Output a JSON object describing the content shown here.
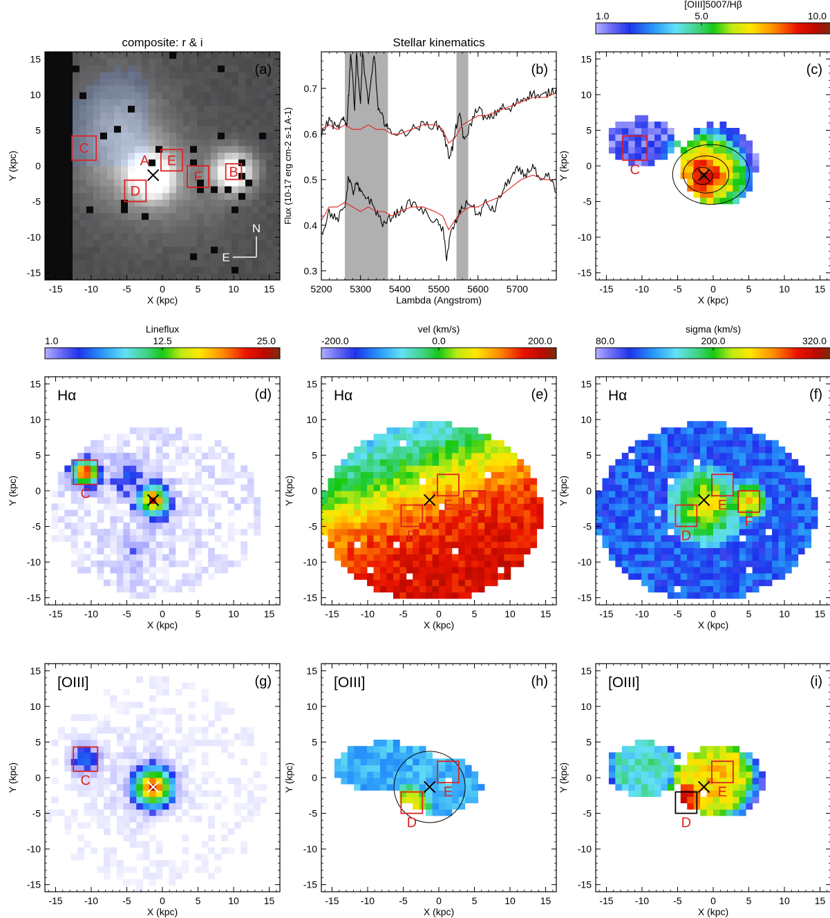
{
  "chart_data": [
    {
      "type": "heatmap",
      "panel": "a",
      "title": "composite: r & i",
      "xlabel": "X (kpc)",
      "ylabel": "Y (kpc)",
      "xlim": [
        -16.5,
        16.5
      ],
      "ylim": [
        -16,
        16
      ],
      "xticks": [
        -15,
        -10,
        -5,
        0,
        5,
        10,
        15
      ],
      "yticks": [
        -15,
        -10,
        -5,
        0,
        5,
        10,
        15
      ],
      "panel_label": "(a)",
      "background": "dark-composite",
      "blobs": [
        {
          "x": -6,
          "y": 4,
          "sx": 4.5,
          "sy": 6,
          "amp": 0.45
        },
        {
          "x": -1.5,
          "y": -1.5,
          "sx": 2.2,
          "sy": 2.2,
          "amp": 1.0
        },
        {
          "x": 10,
          "y": -0.8,
          "sx": 2.0,
          "sy": 2.0,
          "amp": 1.0
        },
        {
          "x": 2,
          "y": -3,
          "sx": 6,
          "sy": 5,
          "amp": 0.2
        }
      ],
      "regions": [
        {
          "label": "C",
          "x": -11,
          "y": 2.5,
          "size": 3.4,
          "color": "#e02020",
          "label_pos": "inside"
        },
        {
          "label": "D",
          "x": -3.8,
          "y": -3.5,
          "size": 3.0,
          "color": "#e02020",
          "label_pos": "inside"
        },
        {
          "label": "E",
          "x": 1.3,
          "y": 0.8,
          "size": 3.0,
          "color": "#e02020",
          "label_pos": "inside"
        },
        {
          "label": "F",
          "x": 5,
          "y": -1.5,
          "size": 3.0,
          "color": "#e02020",
          "label_pos": "inside"
        },
        {
          "label": "B",
          "x": 10,
          "y": -0.8,
          "size": 2.2,
          "color": "#e02020",
          "label_pos": "inside"
        }
      ],
      "point_labels": [
        {
          "label": "A",
          "x": -2.5,
          "y": 0.1,
          "color": "#e02020"
        }
      ],
      "center_cross": {
        "x": -1.3,
        "y": -1.3,
        "color": "#000000"
      },
      "compass": {
        "north": "N",
        "east": "E"
      }
    },
    {
      "type": "line",
      "panel": "b",
      "title": "Stellar kinematics",
      "xlabel": "Lambda (Angstrom)",
      "ylabel": "Flux (10-17 erg cm-2 s-1 A-1)",
      "xlim": [
        5200,
        5800
      ],
      "ylim": [
        0.28,
        0.78
      ],
      "xticks": [
        5200,
        5300,
        5400,
        5500,
        5600,
        5700
      ],
      "yticks": [
        0.3,
        0.4,
        0.5,
        0.6,
        0.7
      ],
      "panel_label": "(b)",
      "masked_regions": [
        [
          5260,
          5370
        ],
        [
          5545,
          5575
        ]
      ],
      "series": [
        {
          "color": "#000000",
          "x": [
            5200,
            5220,
            5240,
            5255,
            5265,
            5270,
            5275,
            5285,
            5290,
            5300,
            5305,
            5320,
            5335,
            5345,
            5360,
            5370,
            5400,
            5430,
            5460,
            5490,
            5510,
            5525,
            5535,
            5545,
            5555,
            5565,
            5580,
            5600,
            5620,
            5640,
            5660,
            5680,
            5700,
            5720,
            5740,
            5760,
            5780,
            5800
          ],
          "y": [
            0.6,
            0.63,
            0.61,
            0.63,
            0.62,
            0.69,
            0.78,
            0.66,
            0.78,
            0.66,
            0.78,
            0.66,
            0.78,
            0.65,
            0.63,
            0.61,
            0.6,
            0.61,
            0.62,
            0.62,
            0.61,
            0.55,
            0.57,
            0.62,
            0.64,
            0.58,
            0.62,
            0.66,
            0.63,
            0.64,
            0.66,
            0.65,
            0.67,
            0.68,
            0.69,
            0.68,
            0.69,
            0.7
          ]
        },
        {
          "color": "#e02020",
          "x": [
            5200,
            5220,
            5240,
            5260,
            5280,
            5300,
            5320,
            5340,
            5360,
            5380,
            5400,
            5430,
            5460,
            5490,
            5510,
            5525,
            5540,
            5560,
            5580,
            5600,
            5620,
            5650,
            5680,
            5710,
            5740,
            5770,
            5800
          ],
          "y": [
            0.61,
            0.62,
            0.61,
            0.62,
            0.61,
            0.61,
            0.62,
            0.61,
            0.61,
            0.6,
            0.6,
            0.61,
            0.62,
            0.62,
            0.61,
            0.58,
            0.59,
            0.62,
            0.63,
            0.64,
            0.64,
            0.65,
            0.66,
            0.67,
            0.68,
            0.68,
            0.69
          ]
        },
        {
          "color": "#000000",
          "x": [
            5200,
            5220,
            5240,
            5260,
            5270,
            5280,
            5290,
            5300,
            5320,
            5340,
            5360,
            5380,
            5400,
            5430,
            5460,
            5490,
            5510,
            5520,
            5530,
            5545,
            5560,
            5580,
            5600,
            5620,
            5640,
            5660,
            5680,
            5700,
            5720,
            5740,
            5760,
            5780,
            5800
          ],
          "y": [
            0.38,
            0.43,
            0.41,
            0.44,
            0.51,
            0.47,
            0.49,
            0.47,
            0.46,
            0.43,
            0.4,
            0.42,
            0.43,
            0.45,
            0.43,
            0.41,
            0.39,
            0.33,
            0.38,
            0.41,
            0.44,
            0.45,
            0.42,
            0.45,
            0.43,
            0.47,
            0.5,
            0.52,
            0.51,
            0.53,
            0.49,
            0.51,
            0.47
          ]
        },
        {
          "color": "#e02020",
          "x": [
            5200,
            5220,
            5240,
            5260,
            5280,
            5300,
            5320,
            5340,
            5360,
            5380,
            5400,
            5430,
            5460,
            5490,
            5510,
            5525,
            5540,
            5560,
            5580,
            5600,
            5620,
            5650,
            5680,
            5710,
            5740,
            5770,
            5800
          ],
          "y": [
            0.41,
            0.44,
            0.44,
            0.45,
            0.44,
            0.43,
            0.44,
            0.43,
            0.43,
            0.42,
            0.43,
            0.44,
            0.44,
            0.43,
            0.42,
            0.39,
            0.41,
            0.43,
            0.44,
            0.44,
            0.45,
            0.46,
            0.48,
            0.5,
            0.51,
            0.5,
            0.5
          ]
        }
      ]
    },
    {
      "type": "heatmap",
      "panel": "c",
      "colorbar_title": "[OIII]5007/Hβ",
      "colorbar_ticks": [
        "1.0",
        "5.0",
        "10.0"
      ],
      "colorbar_tick_pos": [
        0.0,
        0.45,
        1.0
      ],
      "xlabel": "X (kpc)",
      "ylabel": "Y (kpc)",
      "xlim": [
        -16.5,
        16.5
      ],
      "ylim": [
        -16,
        16
      ],
      "xticks": [
        -15,
        -10,
        -5,
        0,
        5,
        10,
        15
      ],
      "yticks": [
        -15,
        -10,
        -5,
        0,
        5,
        10,
        15
      ],
      "panel_label": "(c)",
      "mask": [
        {
          "cx": -10,
          "cy": 3.5,
          "rx": 5,
          "ry": 3.2
        },
        {
          "cx": 0.8,
          "cy": 0.2,
          "rx": 5.3,
          "ry": 5.8
        }
      ],
      "components": [
        {
          "cx": -10,
          "cy": 3.5,
          "r": 5,
          "v0": 0.1,
          "v1": 0.02
        },
        {
          "cx": -1.3,
          "cy": -1.3,
          "r": 5.5,
          "v0": 0.95,
          "v1": 0.45
        }
      ],
      "noise": 0.08,
      "base": 0.05,
      "contours": [
        {
          "cx": -0.3,
          "cy": -1.2,
          "rx": 5.4,
          "ry": 4.2
        },
        {
          "cx": -1.0,
          "cy": -1.2,
          "rx": 3.2,
          "ry": 2.6
        },
        {
          "cx": -1.5,
          "cy": -1.4,
          "rx": 1.4,
          "ry": 1.2
        }
      ],
      "regions": [
        {
          "label": "C",
          "x": -11,
          "y": 2.5,
          "size": 3.4,
          "color": "#e02020",
          "label_pos": "below"
        }
      ],
      "center_cross": {
        "x": -1.3,
        "y": -1.3,
        "color": "#000000"
      }
    },
    {
      "type": "heatmap",
      "panel": "d",
      "colorbar_title": "Lineflux",
      "colorbar_ticks": [
        "1.0",
        "12.5",
        "25.0"
      ],
      "colorbar_tick_pos": [
        0.0,
        0.5,
        1.0
      ],
      "xlabel": "X (kpc)",
      "ylabel": "Y (kpc)",
      "xlim": [
        -16.5,
        16.5
      ],
      "ylim": [
        -16,
        16
      ],
      "xticks": [
        -15,
        -10,
        -5,
        0,
        5,
        10,
        15
      ],
      "yticks": [
        -15,
        -10,
        -5,
        0,
        5,
        10,
        15
      ],
      "panel_label": "(d)",
      "line_label": "Hα",
      "mask": [
        {
          "cx": -1,
          "cy": -3,
          "rx": 15,
          "ry": 12
        }
      ],
      "components": [
        {
          "cx": -10.8,
          "cy": 2.6,
          "r": 2.3,
          "v0": 1.0,
          "v1": 0.15
        },
        {
          "cx": -1.3,
          "cy": -1.3,
          "r": 2.6,
          "v0": 0.95,
          "v1": 0.15
        },
        {
          "cx": -5,
          "cy": 2,
          "r": 4,
          "v0": 0.18,
          "v1": 0.03
        },
        {
          "cx": -4,
          "cy": -8,
          "r": 7,
          "v0": 0.08,
          "v1": 0.02
        }
      ],
      "noise": 0.05,
      "base": 0.02,
      "light": true,
      "regions": [
        {
          "label": "C",
          "x": -10.8,
          "y": 2.6,
          "size": 3.4,
          "color": "#e02020",
          "label_pos": "below"
        }
      ],
      "center_cross": {
        "x": -1.3,
        "y": -1.3,
        "color": "#000000"
      }
    },
    {
      "type": "heatmap",
      "panel": "e",
      "colorbar_title": "vel (km/s)",
      "colorbar_ticks": [
        "-200.0",
        "0.0",
        "200.0"
      ],
      "colorbar_tick_pos": [
        0.0,
        0.5,
        1.0
      ],
      "xlabel": "X (kpc)",
      "ylabel": "Y (kpc)",
      "xlim": [
        -16.5,
        16.5
      ],
      "ylim": [
        -16,
        16
      ],
      "xticks": [
        -15,
        -10,
        -5,
        0,
        5,
        10,
        15
      ],
      "yticks": [
        -15,
        -10,
        -5,
        0,
        5,
        10,
        15
      ],
      "panel_label": "(e)",
      "line_label": "Hα",
      "mask": [
        {
          "cx": -1,
          "cy": -3,
          "rx": 15.5,
          "ry": 12.5
        }
      ],
      "gradient": {
        "dir": [
          0.35,
          -0.95
        ],
        "mid": -3.5,
        "scale": 9
      },
      "noise": 0.06,
      "regions": [
        {
          "label": "D",
          "x": -3.8,
          "y": -3.5,
          "size": 3.0,
          "color": "#e02020",
          "label_pos": "below"
        },
        {
          "label": "E",
          "x": 1.3,
          "y": 0.8,
          "size": 3.0,
          "color": "#e02020",
          "label_pos": "below"
        },
        {
          "label": "F",
          "x": 5,
          "y": -1.5,
          "size": 3.0,
          "color": "#e02020",
          "label_pos": "below"
        }
      ],
      "center_cross": {
        "x": -1.3,
        "y": -1.3,
        "color": "#000000"
      }
    },
    {
      "type": "heatmap",
      "panel": "f",
      "colorbar_title": "sigma (km/s)",
      "colorbar_ticks": [
        "80.0",
        "200.0",
        "320.0"
      ],
      "colorbar_tick_pos": [
        0.0,
        0.5,
        1.0
      ],
      "xlabel": "X (kpc)",
      "ylabel": "Y (kpc)",
      "xlim": [
        -16.5,
        16.5
      ],
      "ylim": [
        -16,
        16
      ],
      "xticks": [
        -15,
        -10,
        -5,
        0,
        5,
        10,
        15
      ],
      "yticks": [
        -15,
        -10,
        -5,
        0,
        5,
        10,
        15
      ],
      "panel_label": "(f)",
      "line_label": "Hα",
      "mask": [
        {
          "cx": -1,
          "cy": -3,
          "rx": 15.5,
          "ry": 12.5
        }
      ],
      "components": [
        {
          "cx": -1,
          "cy": -2,
          "r": 5.5,
          "v0": 0.72,
          "v1": 0.3
        },
        {
          "cx": 5,
          "cy": -1.5,
          "r": 2,
          "v0": 0.72,
          "v1": 0.5
        }
      ],
      "noise": 0.07,
      "base": 0.18,
      "regions": [
        {
          "label": "D",
          "x": -3.8,
          "y": -3.5,
          "size": 3.0,
          "color": "#e02020",
          "label_pos": "below"
        },
        {
          "label": "E",
          "x": 1.3,
          "y": 0.8,
          "size": 3.0,
          "color": "#e02020",
          "label_pos": "below"
        },
        {
          "label": "F",
          "x": 5,
          "y": -1.5,
          "size": 3.0,
          "color": "#e02020",
          "label_pos": "below"
        }
      ],
      "center_cross": {
        "x": -1.3,
        "y": -1.3,
        "color": "#000000"
      }
    },
    {
      "type": "heatmap",
      "panel": "g",
      "xlabel": "X (kpc)",
      "ylabel": "Y (kpc)",
      "xlim": [
        -16.5,
        16.5
      ],
      "ylim": [
        -16,
        16
      ],
      "xticks": [
        -15,
        -10,
        -5,
        0,
        5,
        10,
        15
      ],
      "yticks": [
        -15,
        -10,
        -5,
        0,
        5,
        10,
        15
      ],
      "panel_label": "(g)",
      "line_label": "[OIII]",
      "mask": [
        {
          "cx": -1,
          "cy": -1,
          "rx": 16,
          "ry": 15
        }
      ],
      "components": [
        {
          "cx": -10.8,
          "cy": 2.6,
          "r": 2.2,
          "v0": 0.25,
          "v1": 0.08
        },
        {
          "cx": -1.3,
          "cy": -1.3,
          "r": 3.5,
          "v0": 0.95,
          "v1": 0.12
        },
        {
          "cx": -3,
          "cy": 0,
          "r": 9,
          "v0": 0.06,
          "v1": 0.01
        }
      ],
      "noise": 0.03,
      "base": 0.005,
      "light": true,
      "regions": [
        {
          "label": "C",
          "x": -10.8,
          "y": 2.6,
          "size": 3.4,
          "color": "#e02020",
          "label_pos": "below"
        }
      ],
      "center_cross": {
        "x": -1.3,
        "y": -1.3,
        "color": "#ffffff"
      }
    },
    {
      "type": "heatmap",
      "panel": "h",
      "xlabel": "X (kpc)",
      "ylabel": "Y (kpc)",
      "xlim": [
        -16.5,
        16.5
      ],
      "ylim": [
        -16,
        16
      ],
      "xticks": [
        -15,
        -10,
        -5,
        0,
        5,
        10,
        15
      ],
      "yticks": [
        -15,
        -10,
        -5,
        0,
        5,
        10,
        15
      ],
      "panel_label": "(h)",
      "line_label": "[OIII]",
      "mask": [
        {
          "cx": -7.5,
          "cy": 1.5,
          "rx": 7.5,
          "ry": 3.5
        },
        {
          "cx": 0,
          "cy": -1,
          "rx": 6,
          "ry": 4
        }
      ],
      "components": [
        {
          "cx": -4,
          "cy": -4,
          "r": 2.5,
          "v0": 0.72,
          "v1": 0.5
        },
        {
          "cx": 2,
          "cy": 2,
          "r": 3.5,
          "v0": 0.1,
          "v1": 0.18
        }
      ],
      "noise": 0.05,
      "base": 0.28,
      "contours": [
        {
          "cx": -1.3,
          "cy": -1.3,
          "rx": 5,
          "ry": 5
        }
      ],
      "regions": [
        {
          "label": "D",
          "x": -3.8,
          "y": -3.5,
          "size": 3.0,
          "color": "#e02020",
          "label_pos": "below"
        },
        {
          "label": "E",
          "x": 1.3,
          "y": 0.8,
          "size": 3.0,
          "color": "#e02020",
          "label_pos": "below"
        }
      ],
      "center_cross": {
        "x": -1.3,
        "y": -1.3,
        "color": "#000000"
      }
    },
    {
      "type": "heatmap",
      "panel": "i",
      "xlabel": "X (kpc)",
      "ylabel": "Y (kpc)",
      "xlim": [
        -16.5,
        16.5
      ],
      "ylim": [
        -16,
        16
      ],
      "xticks": [
        -15,
        -10,
        -5,
        0,
        5,
        10,
        15
      ],
      "yticks": [
        -15,
        -10,
        -5,
        0,
        5,
        10,
        15
      ],
      "panel_label": "(i)",
      "line_label": "[OIII]",
      "mask": [
        {
          "cx": -9.5,
          "cy": 1.2,
          "rx": 5.5,
          "ry": 3.8
        },
        {
          "cx": 1,
          "cy": -0.5,
          "rx": 6,
          "ry": 5.2
        }
      ],
      "components": [
        {
          "cx": -4,
          "cy": -3.5,
          "r": 2.5,
          "v0": 0.95,
          "v1": 0.75
        },
        {
          "cx": 0,
          "cy": 0,
          "r": 5,
          "v0": 0.72,
          "v1": 0.58
        },
        {
          "cx": -10,
          "cy": 1.5,
          "r": 4,
          "v0": 0.4,
          "v1": 0.35
        }
      ],
      "noise": 0.07,
      "base": 0.0,
      "regions": [
        {
          "label": "D",
          "x": -3.8,
          "y": -3.5,
          "size": 3.0,
          "color": "#000000",
          "label_pos": "below",
          "label_color": "#e02020"
        },
        {
          "label": "E",
          "x": 1.3,
          "y": 0.8,
          "size": 3.0,
          "color": "#e02020",
          "label_pos": "below"
        }
      ],
      "center_cross": {
        "x": -1.3,
        "y": -1.3,
        "color": "#000000"
      }
    }
  ]
}
